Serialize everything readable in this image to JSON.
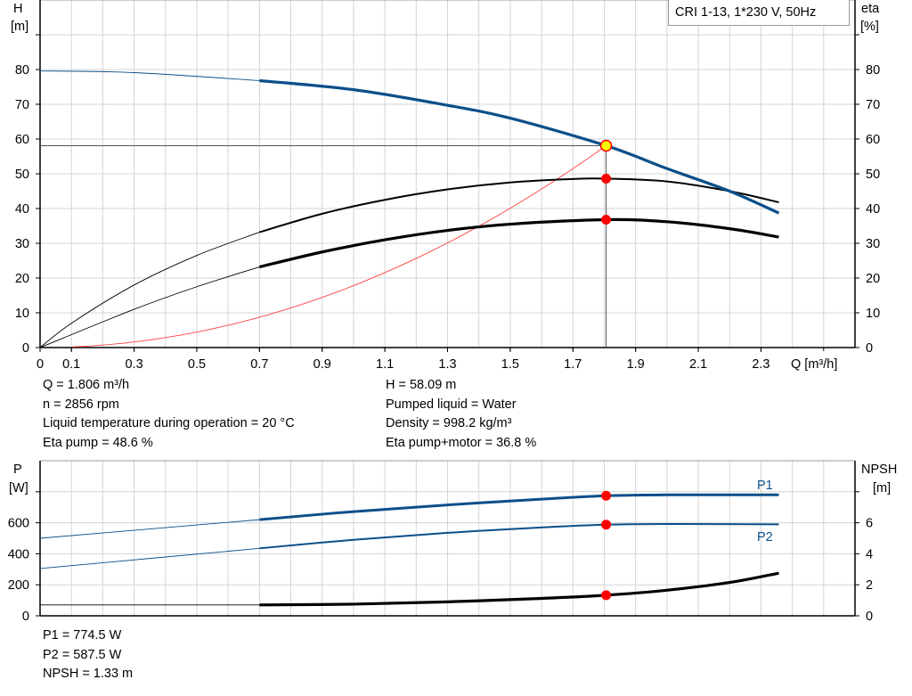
{
  "legend_label": "CRI 1-13, 1*230 V, 50Hz",
  "info_top": {
    "left": [
      "Q = 1.806 m³/h",
      "n = 2856 rpm",
      "Liquid temperature during operation = 20 °C",
      "Eta pump = 48.6 %"
    ],
    "right": [
      "H = 58.09 m",
      "Pumped liquid = Water",
      "Density = 998.2 kg/m³",
      "Eta pump+motor = 36.8 %"
    ]
  },
  "info_bottom": [
    "P1 = 774.5 W",
    "P2 = 587.5 W",
    "NPSH = 1.33 m"
  ],
  "colors": {
    "head": "#0b4f8a",
    "eta": "#000000",
    "system": "#ff4040",
    "duty_point": "#ff0000",
    "duty_head_fill": "#ffff00",
    "grid": "#d4d4d4",
    "power": "#0b4f8a",
    "npsh": "#000000"
  },
  "chart_data": [
    {
      "type": "line",
      "title": "",
      "xlabel": "Q [m³/h]",
      "ylabel_left": [
        "H",
        "[m]"
      ],
      "ylabel_right": [
        "eta",
        "[%]"
      ],
      "xlim": [
        0,
        2.6
      ],
      "ylim": [
        0,
        100
      ],
      "x_ticks": [
        "0",
        "0.1",
        "0.3",
        "0.5",
        "0.7",
        "0.9",
        "1.1",
        "1.3",
        "1.5",
        "1.7",
        "1.9",
        "2.1",
        "2.3"
      ],
      "x_tick_values": [
        0,
        0.1,
        0.3,
        0.5,
        0.7,
        0.9,
        1.1,
        1.3,
        1.5,
        1.7,
        1.9,
        2.1,
        2.3
      ],
      "y_ticks": [
        0,
        10,
        20,
        30,
        40,
        50,
        60,
        70,
        80
      ],
      "grid": true,
      "series": [
        {
          "key": "H",
          "axis": "left",
          "thin_until": 0.7,
          "x": [
            0,
            0.3,
            0.7,
            1.0,
            1.3,
            1.5,
            1.806,
            2.0,
            2.2,
            2.357
          ],
          "y": [
            79.6,
            79.1,
            76.8,
            74.2,
            69.7,
            66,
            58.09,
            51.5,
            45,
            38.7
          ]
        },
        {
          "key": "eta_pump",
          "axis": "right",
          "thin_until": 0.7,
          "x": [
            0,
            0.1,
            0.3,
            0.5,
            0.7,
            0.9,
            1.1,
            1.3,
            1.5,
            1.7,
            1.806,
            2.0,
            2.2,
            2.357
          ],
          "y": [
            0,
            7,
            18,
            26.5,
            33.2,
            38.5,
            42.5,
            45.5,
            47.5,
            48.5,
            48.6,
            47.8,
            45,
            41.8
          ]
        },
        {
          "key": "eta_pump_motor",
          "axis": "right",
          "thin_until": 0.7,
          "x": [
            0,
            0.3,
            0.5,
            0.7,
            0.9,
            1.1,
            1.3,
            1.5,
            1.806,
            2.0,
            2.2,
            2.357
          ],
          "y": [
            0,
            11,
            17.5,
            23.2,
            27.5,
            31,
            33.7,
            35.5,
            36.8,
            36.2,
            34.2,
            31.8
          ]
        },
        {
          "key": "system",
          "axis": "left",
          "quadratic_through": [
            1.806,
            58.09
          ],
          "x_from": 0.1,
          "x_to": 1.806
        }
      ],
      "duty_point": {
        "Q": 1.806,
        "H": 58.09,
        "eta_pump": 48.6,
        "eta_pump_motor": 36.8
      }
    },
    {
      "type": "line",
      "title": "",
      "ylabel_left": [
        "P",
        "[W]"
      ],
      "ylabel_right": [
        "NPSH",
        "[m]"
      ],
      "xlim": [
        0,
        2.6
      ],
      "ylim_left": [
        0,
        1000
      ],
      "ylim_right": [
        0,
        10
      ],
      "y_ticks_left": [
        0,
        200,
        400,
        600
      ],
      "y_ticks_right": [
        0,
        2,
        4,
        6
      ],
      "grid": true,
      "series": [
        {
          "name": "P1",
          "axis": "left",
          "thin_until": 0.7,
          "x": [
            0,
            0.7,
            1.0,
            1.3,
            1.6,
            1.806,
            2.0,
            2.357
          ],
          "y": [
            500,
            620,
            672,
            715,
            752,
            774.5,
            780,
            780
          ]
        },
        {
          "name": "P2",
          "axis": "left",
          "thin_until": 0.7,
          "x": [
            0,
            0.7,
            1.0,
            1.3,
            1.6,
            1.806,
            2.0,
            2.357
          ],
          "y": [
            305,
            435,
            490,
            535,
            570,
            587.5,
            592,
            590
          ]
        },
        {
          "key": "NPSH",
          "axis": "right",
          "thin_until": 0.7,
          "x": [
            0,
            0.7,
            1.0,
            1.3,
            1.6,
            1.806,
            2.0,
            2.2,
            2.357
          ],
          "y": [
            0.7,
            0.7,
            0.75,
            0.9,
            1.12,
            1.33,
            1.65,
            2.15,
            2.75
          ]
        }
      ],
      "duty_point": {
        "Q": 1.806,
        "P1": 774.5,
        "P2": 587.5,
        "NPSH": 1.33
      }
    }
  ]
}
